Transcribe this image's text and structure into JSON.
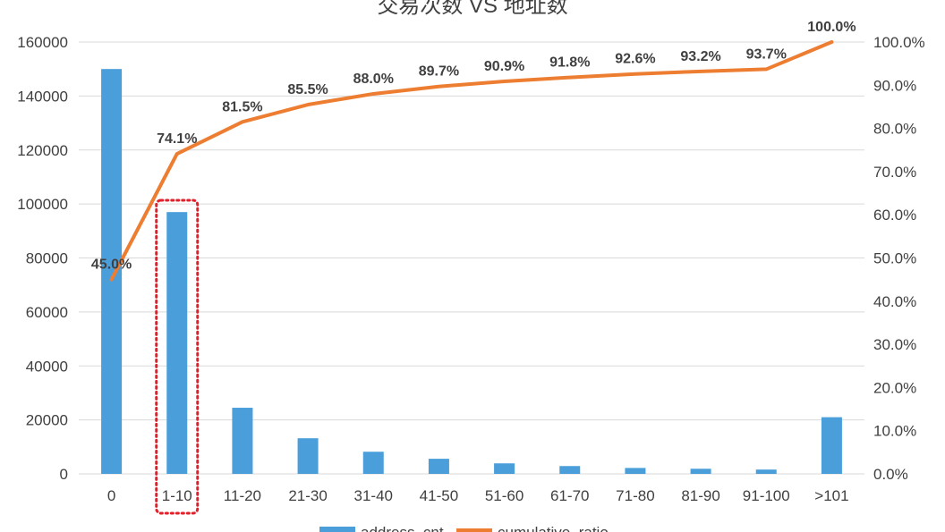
{
  "chart_data": {
    "type": "bar",
    "title": "交易次数 VS 地址数",
    "categories": [
      "0",
      "1-10",
      "11-20",
      "21-30",
      "31-40",
      "41-50",
      "51-60",
      "61-70",
      "71-80",
      "81-90",
      "91-100",
      ">101"
    ],
    "series": [
      {
        "name": "address_cnt",
        "type": "bar",
        "axis": "left",
        "color": "#4A9FDB",
        "values": [
          150000,
          97000,
          24500,
          13200,
          8200,
          5600,
          3900,
          2900,
          2200,
          1900,
          1600,
          21000
        ]
      },
      {
        "name": "cumulative_ratio",
        "type": "line",
        "axis": "right",
        "color": "#ED7D31",
        "values": [
          45.0,
          74.1,
          81.5,
          85.5,
          88.0,
          89.7,
          90.9,
          91.8,
          92.6,
          93.2,
          93.7,
          100.0
        ],
        "labels": [
          "45.0%",
          "74.1%",
          "81.5%",
          "85.5%",
          "88.0%",
          "89.7%",
          "90.9%",
          "91.8%",
          "92.6%",
          "93.2%",
          "93.7%",
          "100.0%"
        ]
      }
    ],
    "y_left": {
      "min": 0,
      "max": 160000,
      "ticks": [
        "0",
        "20000",
        "40000",
        "60000",
        "80000",
        "100000",
        "120000",
        "140000",
        "160000"
      ]
    },
    "y_right": {
      "min": 0,
      "max": 100,
      "ticks": [
        "0.0%",
        "10.0%",
        "20.0%",
        "30.0%",
        "40.0%",
        "50.0%",
        "60.0%",
        "70.0%",
        "80.0%",
        "90.0%",
        "100.0%"
      ]
    },
    "grid": true,
    "legend_position": "bottom",
    "highlight_category": "1-10",
    "highlight_color": "#E0202A"
  }
}
